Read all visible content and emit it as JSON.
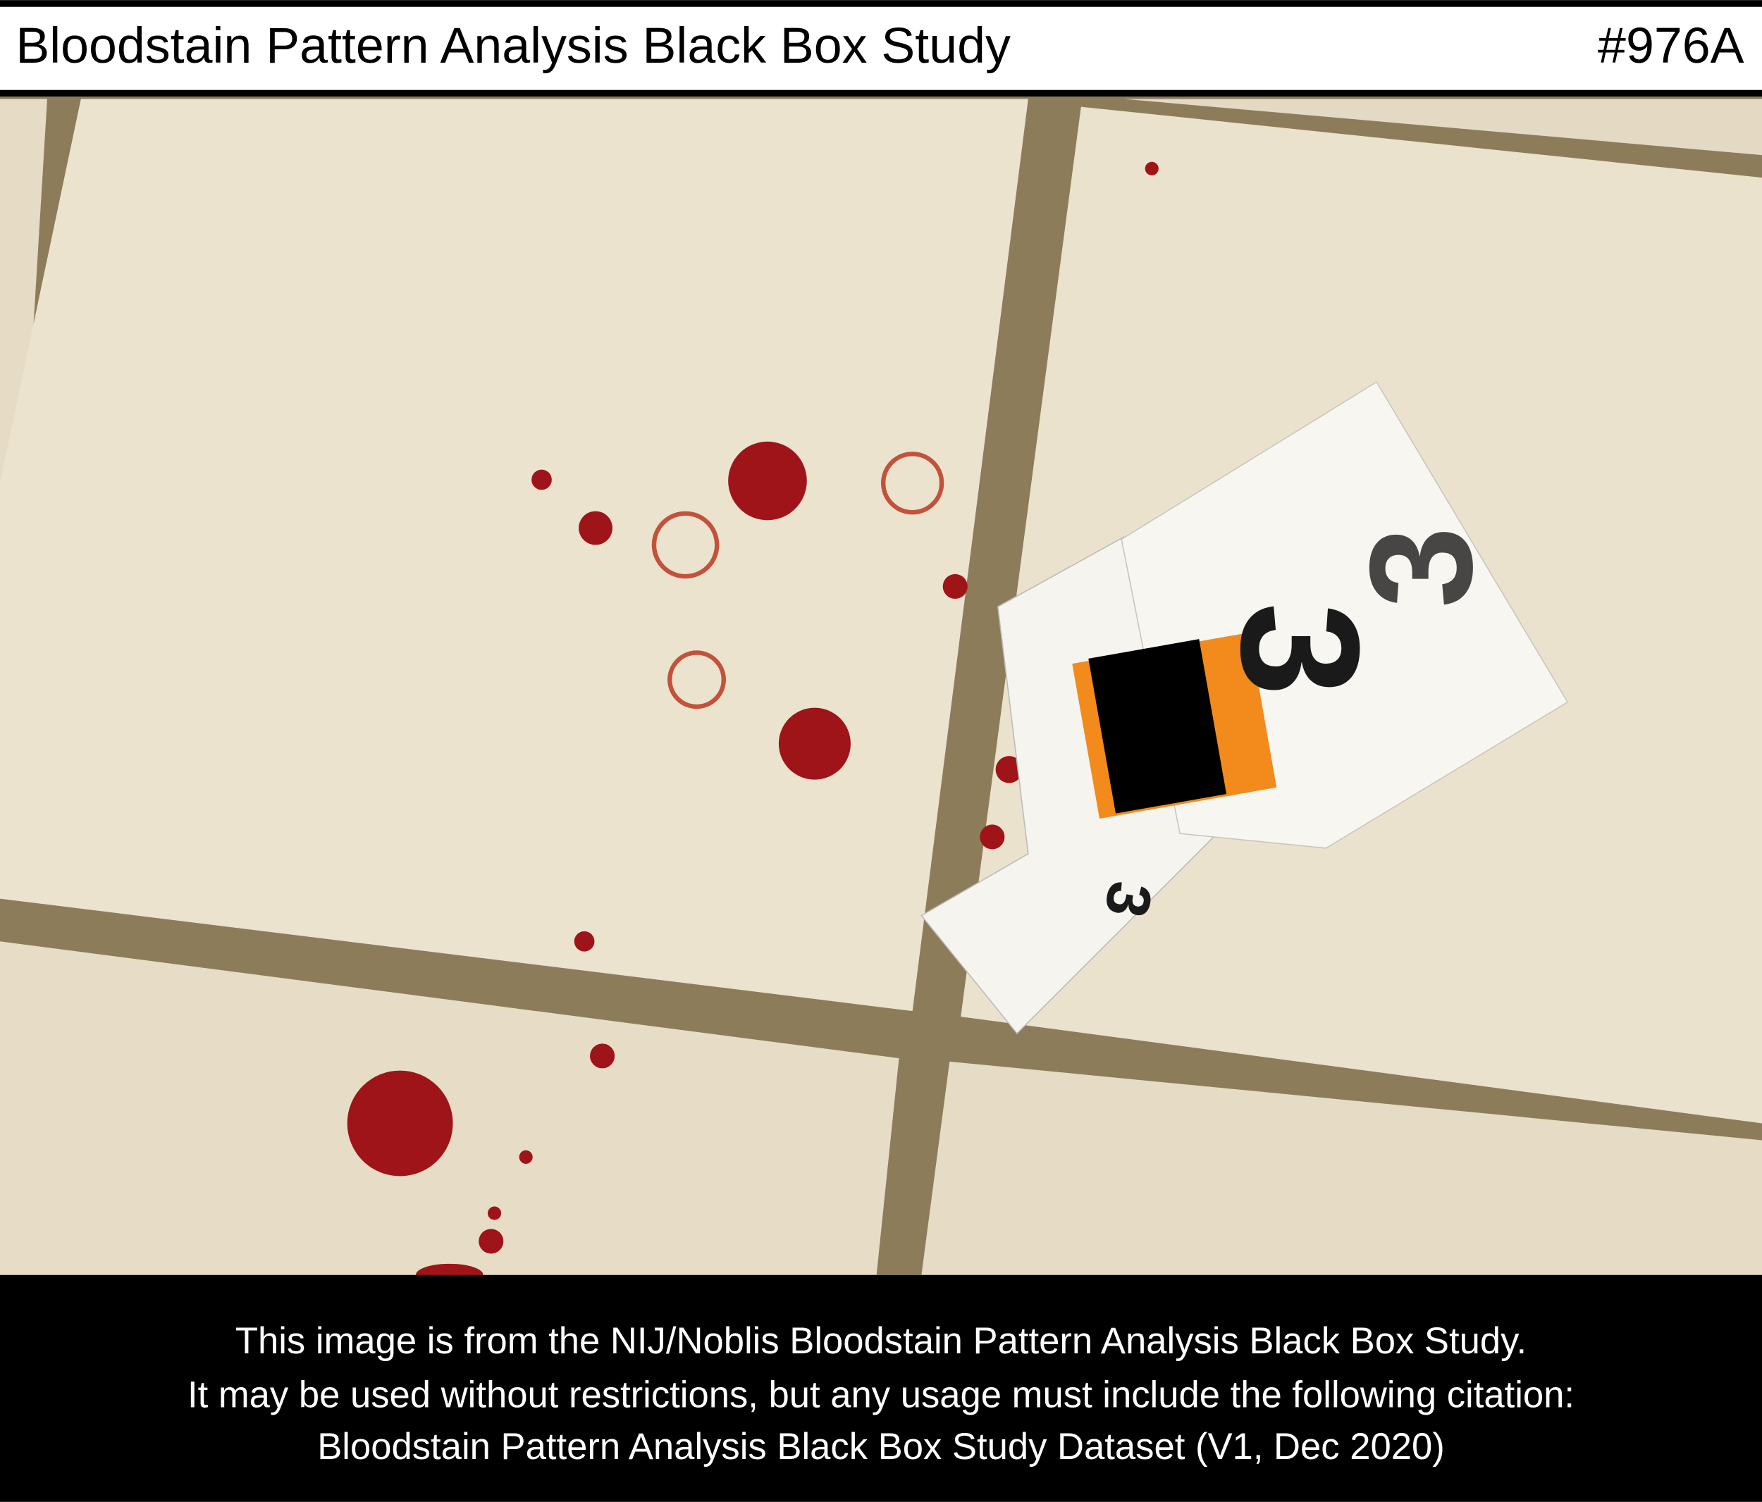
{
  "header": {
    "title": "Bloodstain Pattern Analysis Black Box Study",
    "id": "#976A"
  },
  "photo": {
    "tent_number": "3",
    "scale_number": "3"
  },
  "footer": {
    "lines": [
      "This image is from the NIJ/Noblis Bloodstain Pattern Analysis Black Box Study.",
      "It may be used without restrictions, but any usage must include the following citation:",
      "Bloodstain Pattern Analysis Black Box Study Dataset (V1, Dec 2020)"
    ]
  }
}
